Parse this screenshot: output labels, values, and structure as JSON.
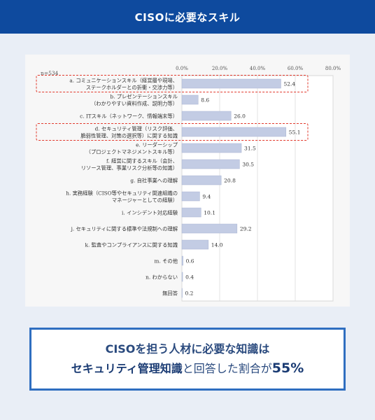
{
  "header": {
    "title": "CISOに必要なスキル"
  },
  "chart_data": {
    "type": "bar",
    "orientation": "horizontal",
    "n_label": "n=534",
    "ticks": [
      "0.0%",
      "20.0%",
      "40.0%",
      "60.0%",
      "80.0%"
    ],
    "xlim": [
      0,
      80
    ],
    "grid": true,
    "categories": [
      [
        "a. コミュニケーションスキル（経営層や現場、",
        "ステークホルダーとの折衝・交渉力等）"
      ],
      [
        "b. プレゼンテーションスキル",
        "（わかりやすい資料作成、説明力等）"
      ],
      [
        "c. ITスキル（ネットワーク、情報端末等）"
      ],
      [
        "d. セキュリティ管理（リスク評価、",
        "脆弱性管理、対策の選択等）に関する知識"
      ],
      [
        "e. リーダーシップ",
        "（プロジェクトマネジメントスキル等）"
      ],
      [
        "f. 経営に関するスキル（会計、",
        "リソース管理、事業リスク分析等の知識）"
      ],
      [
        "g. 自社事業への理解"
      ],
      [
        "h. 実務経験（CISO等やセキュリティ関連組織の",
        "マネージャーとしての経験）"
      ],
      [
        "i. インシデント対応経験"
      ],
      [
        "j. セキュリティに関する標準や法規制への理解"
      ],
      [
        "k. 監査やコンプライアンスに関する知識"
      ],
      [
        "m. その他"
      ],
      [
        "n. わからない"
      ],
      [
        "無回答"
      ]
    ],
    "values": [
      52.4,
      8.6,
      26.0,
      55.1,
      31.5,
      30.5,
      20.8,
      9.4,
      10.1,
      29.2,
      14.0,
      0.6,
      0.4,
      0.2
    ],
    "value_labels": [
      "52.4",
      "8.6",
      "26.0",
      "55.1",
      "31.5",
      "30.5",
      "20.8",
      "9.4",
      "10.1",
      "29.2",
      "14.0",
      "0.6",
      "0.4",
      "0.2"
    ],
    "highlighted": [
      0,
      3
    ],
    "bar_color": "#c3cce4",
    "highlight_color": "#e23b2e"
  },
  "summary": {
    "line1": "CISOを担う人材に必要な知識は",
    "line2_bold": "セキュリティ管理知識",
    "line2_mid": "と回答した割合が",
    "line2_pct": "55%"
  }
}
